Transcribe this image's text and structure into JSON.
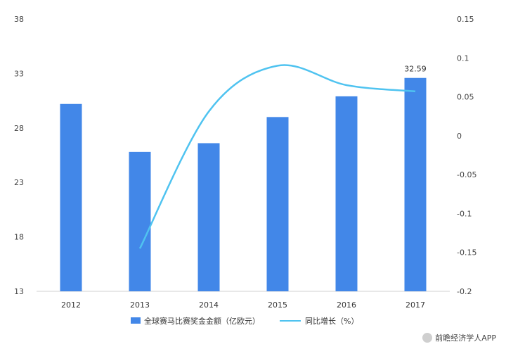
{
  "chart_data": {
    "type": "bar",
    "categories": [
      "2012",
      "2013",
      "2014",
      "2015",
      "2016",
      "2017"
    ],
    "series": [
      {
        "name": "全球赛马比赛奖金金额（亿欧元）",
        "type": "bar",
        "axis": "left",
        "color": "#4287e8",
        "values": [
          30.2,
          25.8,
          26.6,
          29.0,
          30.9,
          32.59
        ]
      },
      {
        "name": "同比增长（%）",
        "type": "line",
        "axis": "right",
        "color": "#4fc3f0",
        "values": [
          null,
          -0.145,
          0.031,
          0.09,
          0.065,
          0.057
        ]
      }
    ],
    "data_labels": [
      {
        "category": "2017",
        "text": "32.59"
      }
    ],
    "y_left": {
      "min": 13,
      "max": 38,
      "ticks": [
        "13",
        "18",
        "23",
        "28",
        "33",
        "38"
      ]
    },
    "y_right": {
      "min": -0.2,
      "max": 0.15,
      "ticks": [
        "-0.2",
        "-0.15",
        "-0.1",
        "-0.05",
        "0",
        "0.05",
        "0.1",
        "0.15"
      ]
    },
    "grid": false,
    "legend_position": "bottom"
  },
  "watermark": {
    "text": "前瞻经济学人APP"
  }
}
